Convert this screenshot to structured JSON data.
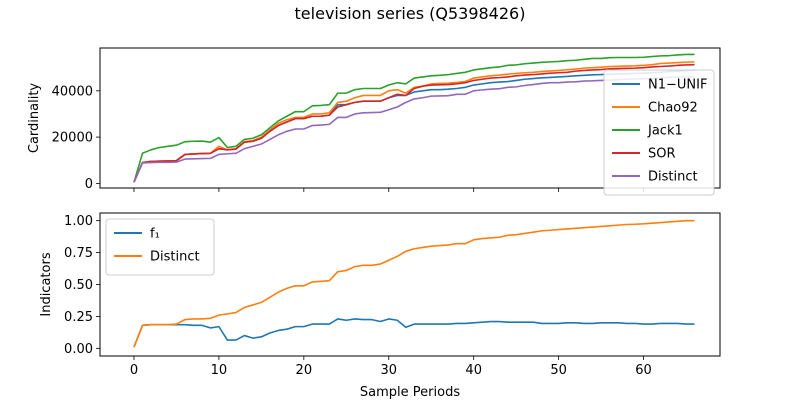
{
  "title": "television series (Q5398426)",
  "chart_data": [
    {
      "type": "line",
      "ylabel": "Cardinality",
      "xlim": [
        -4,
        69
      ],
      "ylim": [
        -2000,
        58500
      ],
      "xticks": [
        0,
        10,
        20,
        30,
        40,
        50,
        60
      ],
      "yticks": [
        0,
        20000,
        40000
      ],
      "ytick_labels": [
        "0",
        "20000",
        "40000"
      ],
      "show_x_tick_labels": false,
      "legend_position": "right",
      "x": [
        0,
        1,
        2,
        3,
        4,
        5,
        6,
        7,
        8,
        9,
        10,
        11,
        12,
        13,
        14,
        15,
        16,
        17,
        18,
        19,
        20,
        21,
        22,
        23,
        24,
        25,
        26,
        27,
        28,
        29,
        30,
        31,
        32,
        33,
        34,
        35,
        36,
        37,
        38,
        39,
        40,
        41,
        42,
        43,
        44,
        45,
        46,
        47,
        48,
        49,
        50,
        51,
        52,
        53,
        54,
        55,
        56,
        57,
        58,
        59,
        60,
        61,
        62,
        63,
        64,
        65,
        66
      ],
      "series": [
        {
          "name": "N1−UNIF",
          "color": "#1f77b4",
          "values": [
            500,
            9000,
            9500,
            9600,
            9700,
            9800,
            12500,
            12700,
            12900,
            13000,
            15000,
            14500,
            14800,
            17800,
            18200,
            19500,
            22500,
            25000,
            26500,
            28000,
            28000,
            29000,
            29000,
            29500,
            34000,
            34000,
            35000,
            35500,
            35500,
            35500,
            37000,
            38000,
            38000,
            39500,
            40000,
            40500,
            40500,
            40700,
            41000,
            41500,
            42500,
            43000,
            43500,
            43800,
            44000,
            44500,
            45000,
            45300,
            45600,
            45800,
            46000,
            46200,
            46500,
            46700,
            46900,
            47000,
            47200,
            47300,
            47400,
            47500,
            47600,
            47800,
            48000,
            48300,
            48500,
            48700,
            48900
          ]
        },
        {
          "name": "Chao92",
          "color": "#ff7f0e",
          "values": [
            500,
            9000,
            9500,
            9600,
            9700,
            9800,
            12500,
            12700,
            12900,
            13000,
            16000,
            14500,
            15000,
            18000,
            18500,
            20000,
            23000,
            26000,
            27500,
            28500,
            28500,
            30000,
            30000,
            30500,
            35000,
            35500,
            37000,
            38000,
            38000,
            38000,
            40000,
            40500,
            39000,
            41500,
            42000,
            43000,
            43200,
            43300,
            43600,
            44000,
            45500,
            46000,
            46500,
            46800,
            47200,
            47500,
            47800,
            48000,
            48300,
            48600,
            48800,
            49100,
            49400,
            49800,
            50000,
            50200,
            50500,
            50600,
            50700,
            50800,
            51000,
            51300,
            51800,
            52000,
            52200,
            52400,
            52500
          ]
        },
        {
          "name": "Jack1",
          "color": "#2ca02c",
          "values": [
            500,
            13000,
            14500,
            15500,
            16000,
            16500,
            18000,
            18200,
            18300,
            17800,
            19800,
            15500,
            16000,
            19000,
            19500,
            21000,
            24000,
            27000,
            29000,
            31000,
            31000,
            33500,
            33700,
            34000,
            39000,
            39000,
            40500,
            41000,
            41000,
            41000,
            42500,
            43500,
            43000,
            45500,
            46000,
            46500,
            46700,
            47000,
            47500,
            48000,
            49000,
            49500,
            50000,
            50300,
            51000,
            51200,
            51700,
            52000,
            52300,
            52500,
            52700,
            53000,
            53200,
            53600,
            54000,
            54000,
            54300,
            54400,
            54400,
            54400,
            54500,
            54800,
            55100,
            55200,
            55500,
            55700,
            55700
          ]
        },
        {
          "name": "SOR",
          "color": "#d62728",
          "values": [
            500,
            9000,
            9500,
            9600,
            9700,
            9800,
            12500,
            12700,
            12900,
            13000,
            15000,
            14500,
            14800,
            17800,
            18200,
            19500,
            22500,
            25000,
            26500,
            28000,
            28000,
            29000,
            29000,
            29500,
            33000,
            34000,
            35000,
            35500,
            35500,
            35500,
            37000,
            38500,
            38000,
            41000,
            42000,
            42500,
            42600,
            42700,
            43000,
            43500,
            44500,
            45000,
            45500,
            45700,
            46000,
            46500,
            46800,
            47000,
            47300,
            47600,
            47800,
            48000,
            48500,
            48800,
            49000,
            49200,
            49500,
            49600,
            49700,
            49800,
            50000,
            50300,
            50500,
            50700,
            51000,
            51200,
            51300
          ]
        },
        {
          "name": "Distinct",
          "color": "#9467bd",
          "values": [
            500,
            8800,
            9000,
            9100,
            9100,
            9200,
            10500,
            10600,
            10700,
            10800,
            12500,
            12800,
            13000,
            15000,
            16000,
            17000,
            19000,
            21000,
            22500,
            23500,
            23500,
            25000,
            25200,
            25500,
            28500,
            28500,
            30000,
            30500,
            30600,
            30700,
            31800,
            33000,
            35000,
            36500,
            37000,
            37700,
            37800,
            37900,
            38500,
            38500,
            40000,
            40400,
            40700,
            40900,
            41500,
            41700,
            42300,
            42700,
            43200,
            43500,
            43500,
            43800,
            43900,
            44200,
            44300,
            44500,
            44600,
            44800,
            45000,
            45100,
            45200,
            45300,
            45500,
            45800,
            45900,
            46000,
            46000
          ]
        }
      ]
    },
    {
      "type": "line",
      "xlabel": "Sample Periods",
      "ylabel": "Indicators",
      "xlim": [
        -4,
        69
      ],
      "ylim": [
        -0.06,
        1.06
      ],
      "xticks": [
        0,
        10,
        20,
        30,
        40,
        50,
        60
      ],
      "yticks": [
        0,
        0.25,
        0.5,
        0.75,
        1.0
      ],
      "ytick_labels": [
        "0.00",
        "0.25",
        "0.50",
        "0.75",
        "1.00"
      ],
      "xtick_labels": [
        "0",
        "10",
        "20",
        "30",
        "40",
        "50",
        "60"
      ],
      "legend_position": "upper left",
      "x": [
        0,
        1,
        2,
        3,
        4,
        5,
        6,
        7,
        8,
        9,
        10,
        11,
        12,
        13,
        14,
        15,
        16,
        17,
        18,
        19,
        20,
        21,
        22,
        23,
        24,
        25,
        26,
        27,
        28,
        29,
        30,
        31,
        32,
        33,
        34,
        35,
        36,
        37,
        38,
        39,
        40,
        41,
        42,
        43,
        44,
        45,
        46,
        47,
        48,
        49,
        50,
        51,
        52,
        53,
        54,
        55,
        56,
        57,
        58,
        59,
        60,
        61,
        62,
        63,
        64,
        65,
        66
      ],
      "series": [
        {
          "name": "f₁",
          "color": "#1f77b4",
          "values": [
            0.01,
            0.18,
            0.185,
            0.185,
            0.185,
            0.185,
            0.185,
            0.18,
            0.18,
            0.16,
            0.17,
            0.065,
            0.065,
            0.1,
            0.08,
            0.09,
            0.12,
            0.14,
            0.15,
            0.17,
            0.17,
            0.19,
            0.19,
            0.19,
            0.23,
            0.22,
            0.23,
            0.225,
            0.225,
            0.21,
            0.23,
            0.22,
            0.165,
            0.19,
            0.19,
            0.19,
            0.19,
            0.19,
            0.195,
            0.195,
            0.2,
            0.205,
            0.21,
            0.21,
            0.205,
            0.205,
            0.205,
            0.205,
            0.195,
            0.195,
            0.195,
            0.2,
            0.2,
            0.195,
            0.195,
            0.2,
            0.2,
            0.2,
            0.195,
            0.195,
            0.19,
            0.19,
            0.195,
            0.195,
            0.195,
            0.19,
            0.19
          ]
        },
        {
          "name": "Distinct",
          "color": "#ff7f0e",
          "values": [
            0.01,
            0.18,
            0.185,
            0.185,
            0.185,
            0.19,
            0.225,
            0.23,
            0.23,
            0.235,
            0.26,
            0.27,
            0.28,
            0.32,
            0.34,
            0.36,
            0.4,
            0.44,
            0.47,
            0.49,
            0.49,
            0.52,
            0.525,
            0.53,
            0.6,
            0.61,
            0.64,
            0.65,
            0.65,
            0.66,
            0.69,
            0.72,
            0.76,
            0.78,
            0.79,
            0.8,
            0.805,
            0.81,
            0.82,
            0.82,
            0.85,
            0.86,
            0.865,
            0.87,
            0.885,
            0.89,
            0.9,
            0.91,
            0.92,
            0.925,
            0.93,
            0.935,
            0.94,
            0.945,
            0.95,
            0.955,
            0.96,
            0.965,
            0.97,
            0.972,
            0.975,
            0.98,
            0.985,
            0.99,
            0.995,
            1.0,
            1.0
          ]
        }
      ]
    }
  ]
}
